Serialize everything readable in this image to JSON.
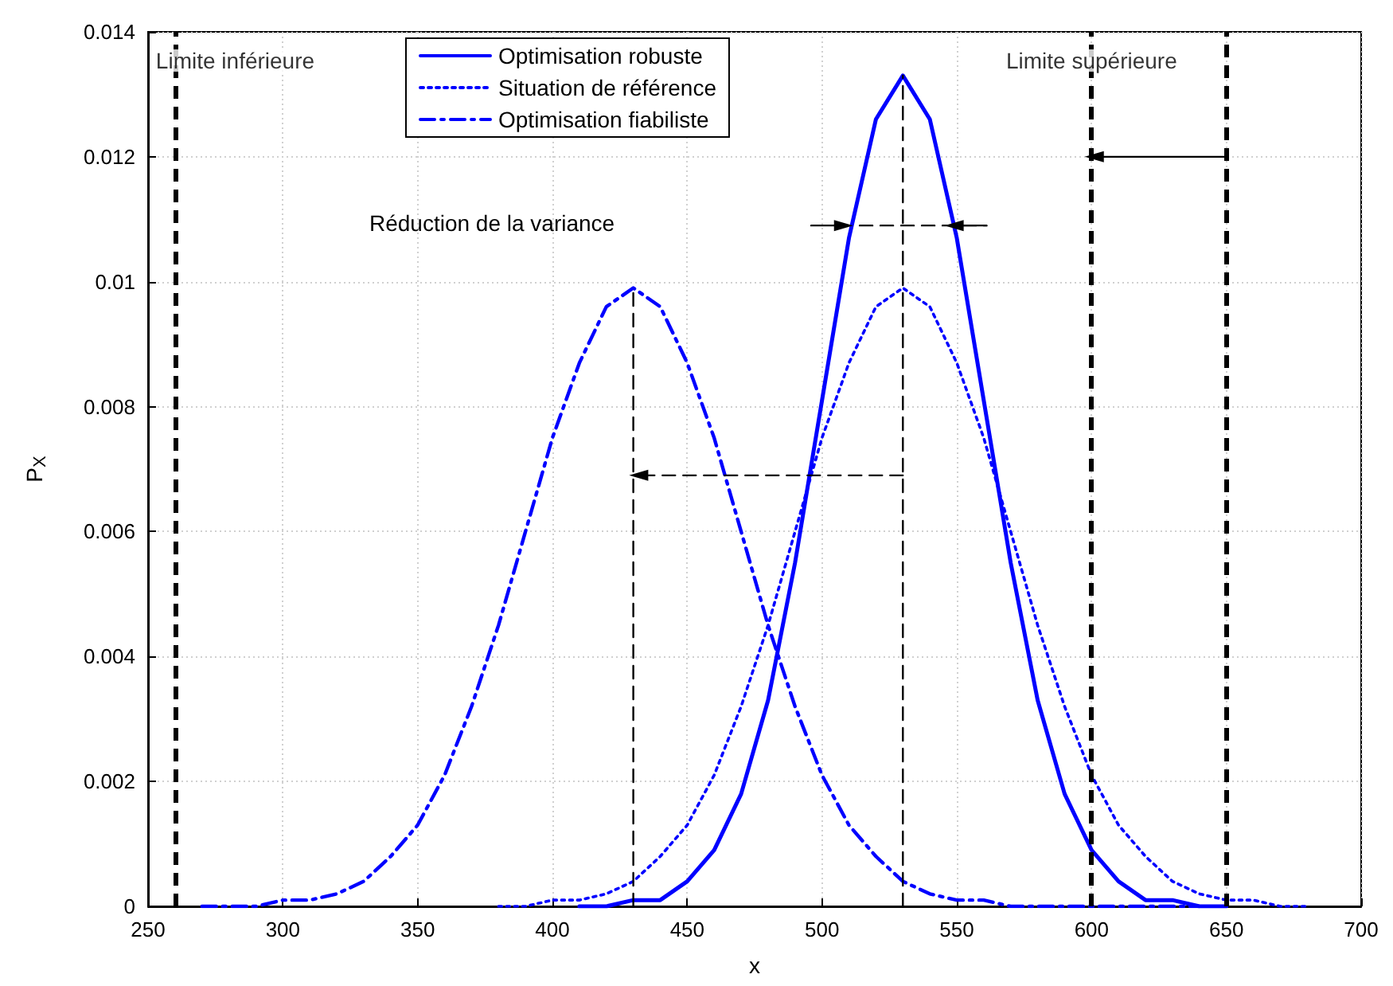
{
  "chart_data": {
    "type": "line",
    "xlabel": "x",
    "ylabel": "P$_{X}$",
    "xlim": [
      250,
      700
    ],
    "xticks": [
      250,
      300,
      350,
      400,
      450,
      500,
      550,
      600,
      650,
      700
    ],
    "ylim": [
      0,
      0.014
    ],
    "yticks": [
      0,
      0.002,
      0.004,
      0.006,
      0.008,
      0.01,
      0.012,
      0.014
    ],
    "grid": true,
    "legend": "top",
    "marker": "none",
    "series": [
      {
        "name": "Optimisation robuste",
        "color": "#0000ff",
        "line_style": "solid",
        "x": [
          410,
          420,
          430,
          440,
          450,
          460,
          470,
          480,
          490,
          500,
          510,
          520,
          530,
          540,
          550,
          560,
          570,
          580,
          590,
          600,
          610,
          620,
          630,
          640,
          650
        ],
        "values": [
          0,
          0,
          0.0001,
          0.0001,
          0.0004,
          0.0009,
          0.0018,
          0.0033,
          0.0055,
          0.0081,
          0.0107,
          0.0126,
          0.0133,
          0.0126,
          0.0107,
          0.0081,
          0.0055,
          0.0033,
          0.0018,
          0.0009,
          0.0004,
          0.0001,
          0.0001,
          0,
          0
        ]
      },
      {
        "name": "Situation de référence",
        "color": "#0000ff",
        "line_style": "dotted",
        "x": [
          380,
          390,
          400,
          410,
          420,
          430,
          440,
          450,
          460,
          470,
          480,
          490,
          500,
          510,
          520,
          530,
          540,
          550,
          560,
          570,
          580,
          590,
          600,
          610,
          620,
          630,
          640,
          650,
          660,
          670,
          680
        ],
        "values": [
          0,
          0,
          0.0001,
          0.0001,
          0.0002,
          0.0004,
          0.0008,
          0.0013,
          0.0021,
          0.0032,
          0.0045,
          0.006,
          0.0075,
          0.0087,
          0.0096,
          0.0099,
          0.0096,
          0.0087,
          0.0075,
          0.006,
          0.0045,
          0.0032,
          0.0021,
          0.0013,
          0.0008,
          0.0004,
          0.0002,
          0.0001,
          0.0001,
          0,
          0
        ]
      },
      {
        "name": "Optimisation fiabiliste",
        "color": "#0000ff",
        "line_style": "dashdot",
        "x": [
          270,
          280,
          290,
          300,
          310,
          320,
          330,
          340,
          350,
          360,
          370,
          380,
          390,
          400,
          410,
          420,
          430,
          440,
          450,
          460,
          470,
          480,
          490,
          500,
          510,
          520,
          530,
          540,
          550,
          560,
          570,
          580,
          590,
          600,
          620,
          640
        ],
        "values": [
          0,
          0,
          0,
          0.0001,
          0.0001,
          0.0002,
          0.0004,
          0.0008,
          0.0013,
          0.0021,
          0.0032,
          0.0045,
          0.006,
          0.0075,
          0.0087,
          0.0096,
          0.0099,
          0.0096,
          0.0087,
          0.0075,
          0.006,
          0.0045,
          0.0032,
          0.0021,
          0.0013,
          0.0008,
          0.0004,
          0.0002,
          0.0001,
          0.0001,
          0,
          0,
          0,
          0,
          0,
          0
        ]
      },
      {
        "color": "#000000",
        "line_style": "dashed",
        "x": [
          430,
          430
        ],
        "values": [
          0,
          0.0099
        ]
      },
      {
        "color": "#000000",
        "line_style": "dashed",
        "x": [
          530,
          530
        ],
        "values": [
          0,
          0.0133
        ]
      },
      {
        "color": "#000000",
        "line_style": "dashed",
        "marker": "triangle",
        "x": [
          530,
          432
        ],
        "values": [
          0.0069,
          0.0069
        ]
      },
      {
        "color": "#000000",
        "line_style": "dashed",
        "x": [
          514,
          561
        ],
        "values": [
          0.0109,
          0.0109
        ]
      },
      {
        "color": "#000000",
        "line_style": "solid",
        "marker": "triangle",
        "x": [
          496,
          508
        ],
        "values": [
          0.0109,
          0.0109
        ]
      },
      {
        "color": "#000000",
        "line_style": "solid",
        "marker": "triangle",
        "x": [
          561,
          549
        ],
        "values": [
          0.0109,
          0.0109
        ]
      },
      {
        "color": "#000000",
        "line_style": "solid",
        "marker": "triangle",
        "x": [
          650,
          601
        ],
        "values": [
          0.012,
          0.012
        ]
      }
    ],
    "ref_lines": [
      {
        "axis": "x",
        "value": 260,
        "label": "Limite inférieure",
        "color": "#000000",
        "line_style": "dashed"
      },
      {
        "axis": "x",
        "value": 600,
        "label": "Limite supérieure",
        "color": "#000000",
        "line_style": "dashed"
      },
      {
        "axis": "x",
        "value": 650,
        "color": "#000000",
        "line_style": "dashed"
      }
    ],
    "annotations": [
      "Réduction de la variance"
    ]
  }
}
